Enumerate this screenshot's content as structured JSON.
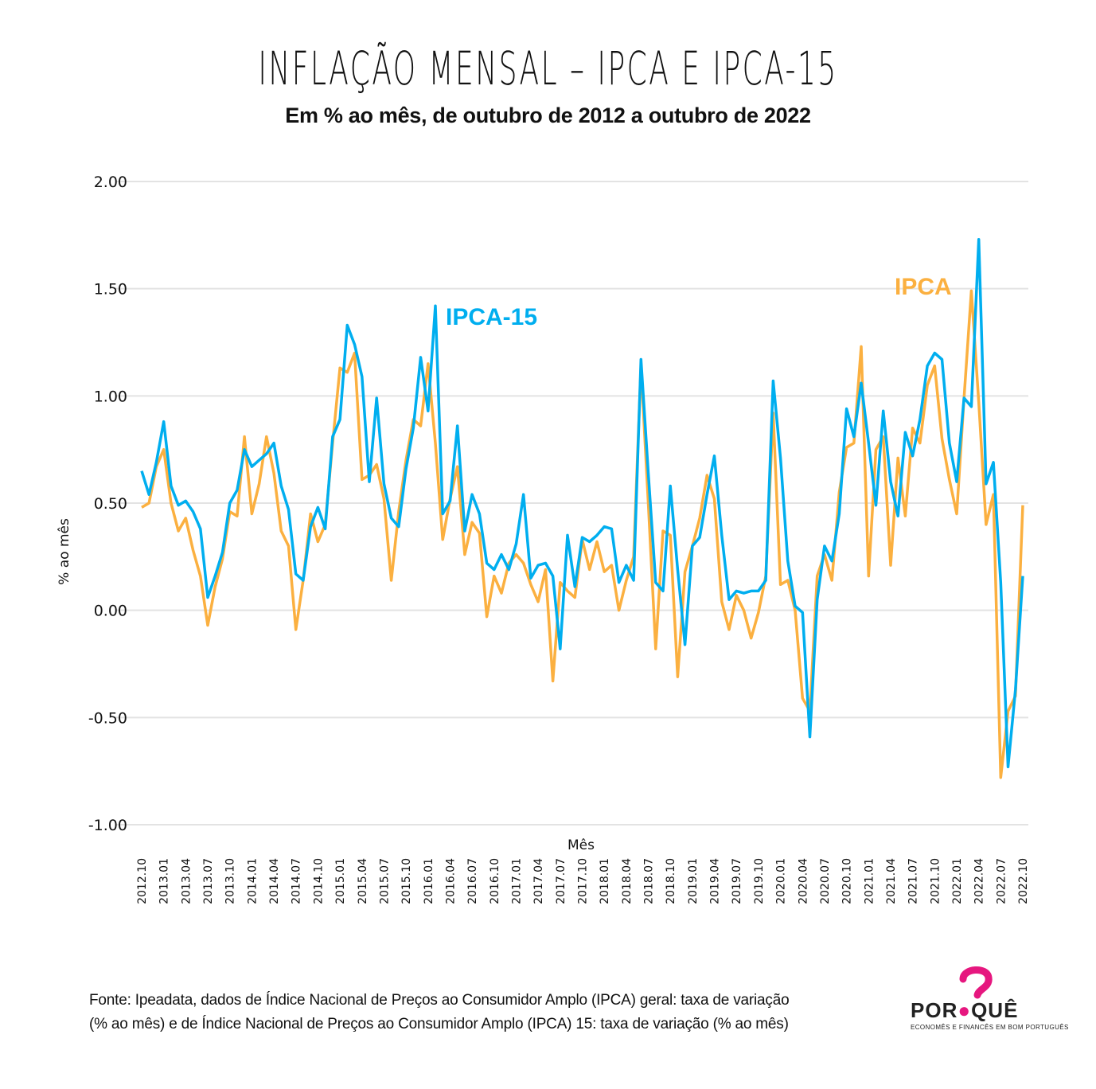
{
  "header": {
    "title": "INFLAÇÃO MENSAL – IPCA E IPCA-15",
    "subtitle": "Em % ao mês, de outubro de 2012 a outubro de 2022"
  },
  "footer": {
    "source_line1": "Fonte: Ipeadata, dados de Índice Nacional de Preços ao Consumidor Amplo (IPCA) geral: taxa de variação",
    "source_line2": "(% ao mês) e de Índice Nacional de Preços ao Consumidor Amplo (IPCA) 15: taxa de variação (% ao mês)"
  },
  "logo": {
    "word_left": "POR",
    "word_right": "QUÊ",
    "tagline": "ECONOMÊS E FINANCÊS EM BOM PORTUGUÊS",
    "accent": "#e6177f"
  },
  "chart_data": {
    "type": "line",
    "title": "INFLAÇÃO MENSAL – IPCA E IPCA-15",
    "subtitle": "Em % ao mês, de outubro de 2012 a outubro de 2022",
    "xlabel": "Mês",
    "ylabel": "% ao mês",
    "ylim": [
      -1.0,
      2.0
    ],
    "yticks": [
      2.0,
      1.5,
      1.0,
      0.5,
      0.0,
      -0.5,
      -1.0
    ],
    "ytick_labels": [
      "2.00",
      "1.50",
      "1.00",
      "0.50",
      "0.00",
      "-0.50",
      "-1.00"
    ],
    "grid": "horizontal",
    "legend": "inline labels (IPCA-15 center-left, IPCA top-right)",
    "x_start": "2012.10",
    "x_end": "2022.10",
    "x_tick_every_months": 3,
    "xtick_labels": [
      "2012.10",
      "2013.01",
      "2013.04",
      "2013.07",
      "2013.10",
      "2014.01",
      "2014.04",
      "2014.07",
      "2014.10",
      "2015.01",
      "2015.04",
      "2015.07",
      "2015.10",
      "2016.01",
      "2016.04",
      "2016.07",
      "2016.10",
      "2017.01",
      "2017.04",
      "2017.07",
      "2017.10",
      "2018.01",
      "2018.04",
      "2018.07",
      "2018.10",
      "2019.01",
      "2019.04",
      "2019.07",
      "2019.10",
      "2020.01",
      "2020.04",
      "2020.07",
      "2020.10",
      "2021.01",
      "2021.04",
      "2021.07",
      "2021.10",
      "2022.01",
      "2022.04",
      "2022.07",
      "2022.10"
    ],
    "series": [
      {
        "name": "IPCA",
        "color": "#fbb040",
        "values": [
          0.48,
          0.5,
          0.67,
          0.75,
          0.5,
          0.37,
          0.43,
          0.28,
          0.16,
          -0.07,
          0.11,
          0.24,
          0.46,
          0.44,
          0.81,
          0.45,
          0.59,
          0.81,
          0.64,
          0.37,
          0.3,
          -0.09,
          0.14,
          0.45,
          0.32,
          0.4,
          0.78,
          1.13,
          1.11,
          1.2,
          0.61,
          0.63,
          0.68,
          0.52,
          0.14,
          0.46,
          0.7,
          0.89,
          0.86,
          1.15,
          0.78,
          0.33,
          0.52,
          0.67,
          0.26,
          0.41,
          0.36,
          -0.03,
          0.16,
          0.08,
          0.22,
          0.26,
          0.22,
          0.12,
          0.04,
          0.19,
          -0.33,
          0.13,
          0.09,
          0.06,
          0.33,
          0.19,
          0.32,
          0.18,
          0.21,
          0.0,
          0.14,
          0.25,
          1.14,
          0.5,
          -0.18,
          0.37,
          0.35,
          -0.31,
          0.18,
          0.3,
          0.43,
          0.63,
          0.52,
          0.04,
          -0.09,
          0.07,
          0.0,
          -0.13,
          -0.01,
          0.16,
          0.92,
          0.12,
          0.14,
          0.0,
          -0.41,
          -0.47,
          0.16,
          0.26,
          0.14,
          0.55,
          0.76,
          0.78,
          1.23,
          0.16,
          0.75,
          0.81,
          0.21,
          0.71,
          0.44,
          0.85,
          0.78,
          1.05,
          1.14,
          0.8,
          0.61,
          0.45,
          0.99,
          1.49,
          0.97,
          0.4,
          0.54,
          -0.78,
          -0.47,
          -0.4,
          0.49
        ]
      },
      {
        "name": "IPCA-15",
        "color": "#00aeef",
        "values": [
          0.65,
          0.54,
          0.69,
          0.88,
          0.58,
          0.49,
          0.51,
          0.46,
          0.38,
          0.06,
          0.16,
          0.27,
          0.5,
          0.56,
          0.75,
          0.67,
          0.7,
          0.73,
          0.78,
          0.58,
          0.47,
          0.17,
          0.14,
          0.39,
          0.48,
          0.38,
          0.81,
          0.89,
          1.33,
          1.24,
          1.09,
          0.6,
          0.99,
          0.59,
          0.43,
          0.39,
          0.66,
          0.85,
          1.18,
          0.93,
          1.42,
          0.45,
          0.51,
          0.86,
          0.37,
          0.54,
          0.45,
          0.22,
          0.19,
          0.26,
          0.19,
          0.31,
          0.54,
          0.15,
          0.21,
          0.22,
          0.16,
          -0.18,
          0.35,
          0.11,
          0.34,
          0.32,
          0.35,
          0.39,
          0.38,
          0.13,
          0.21,
          0.14,
          1.17,
          0.64,
          0.13,
          0.09,
          0.58,
          0.19,
          -0.16,
          0.3,
          0.34,
          0.54,
          0.72,
          0.35,
          0.05,
          0.09,
          0.08,
          0.09,
          0.09,
          0.14,
          1.07,
          0.71,
          0.23,
          0.02,
          -0.01,
          -0.59,
          0.05,
          0.3,
          0.23,
          0.45,
          0.94,
          0.81,
          1.06,
          0.78,
          0.49,
          0.93,
          0.6,
          0.44,
          0.83,
          0.72,
          0.89,
          1.14,
          1.2,
          1.17,
          0.78,
          0.6,
          0.99,
          0.95,
          1.73,
          0.59,
          0.69,
          0.13,
          -0.73,
          -0.37,
          0.16
        ]
      }
    ],
    "annotations": [
      {
        "text": "IPCA-15",
        "series": "IPCA-15",
        "near_x": "2016.03",
        "near_y": 1.35
      },
      {
        "text": "IPCA",
        "series": "IPCA",
        "near_x": "2022.01",
        "near_y": 1.5
      }
    ]
  }
}
